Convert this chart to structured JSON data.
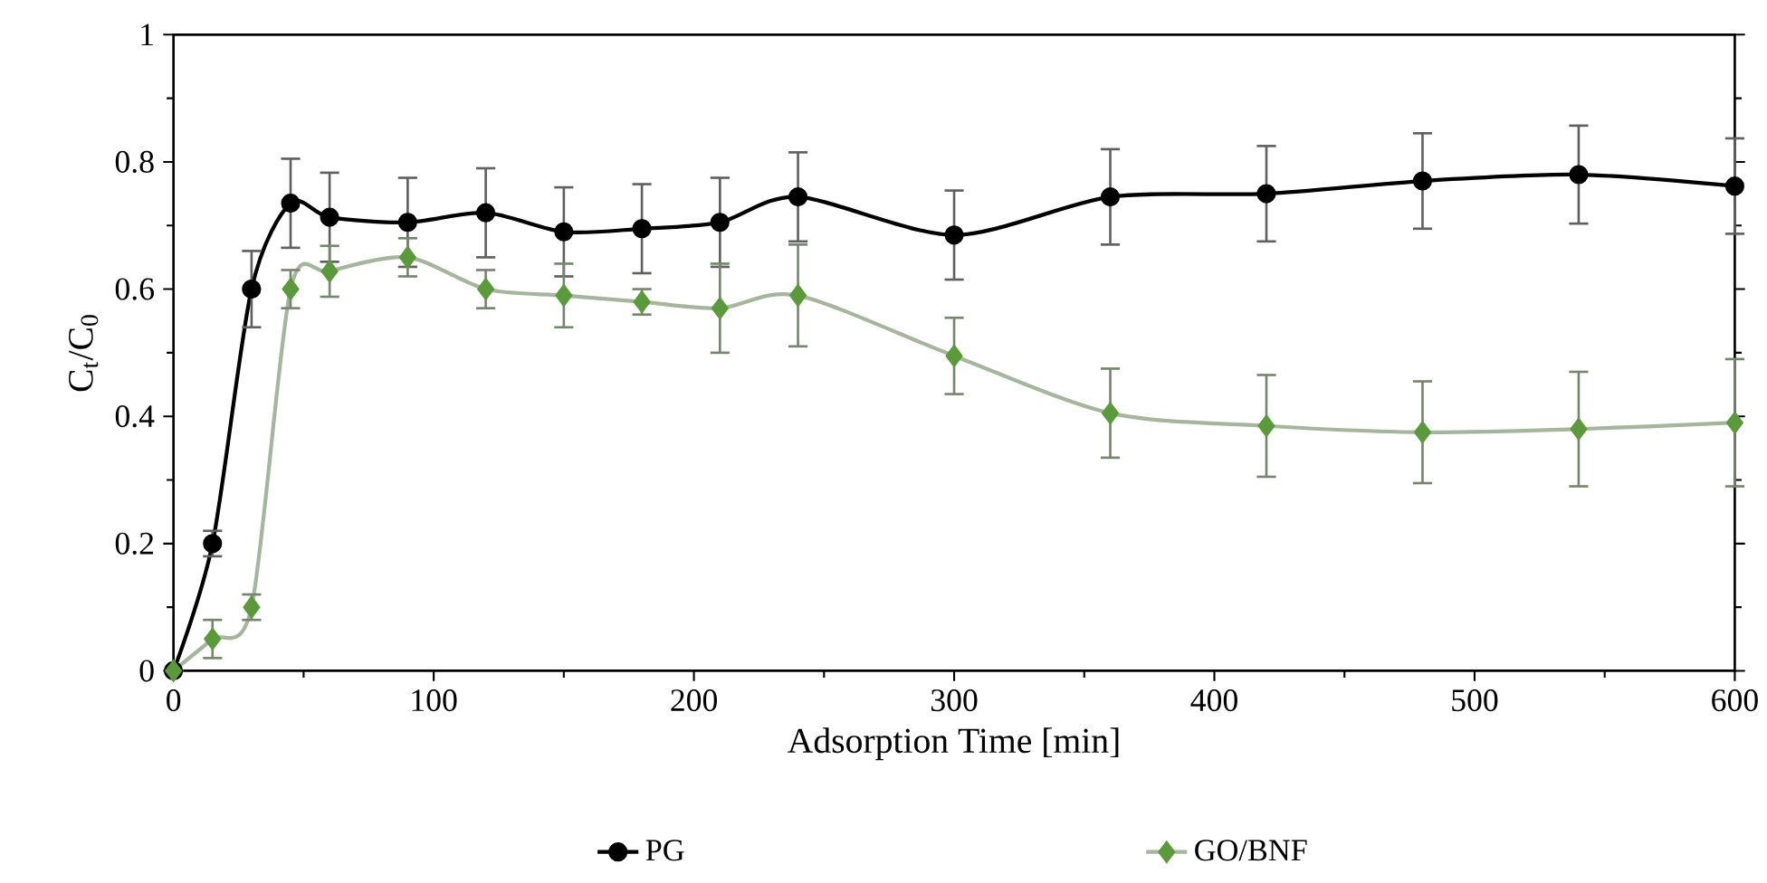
{
  "chart_data": {
    "type": "line",
    "xlabel": "Adsorption Time [min]",
    "ylabel": "C$_{t}$/C$_{0}$",
    "x": [
      0,
      15,
      30,
      45,
      60,
      90,
      120,
      150,
      180,
      210,
      240,
      300,
      360,
      420,
      480,
      540,
      600
    ],
    "series": [
      {
        "name": "PG",
        "color": "#000000",
        "marker": "circle",
        "values": [
          0,
          0.2,
          0.6,
          0.735,
          0.713,
          0.705,
          0.72,
          0.69,
          0.695,
          0.705,
          0.745,
          0.685,
          0.745,
          0.75,
          0.77,
          0.78,
          0.762
        ],
        "errors": [
          0,
          0.02,
          0.06,
          0.07,
          0.07,
          0.07,
          0.07,
          0.07,
          0.07,
          0.07,
          0.07,
          0.07,
          0.075,
          0.075,
          0.075,
          0.077,
          0.075
        ]
      },
      {
        "name": "GO/BNF",
        "color": "#5a9a3a",
        "marker": "diamond",
        "values": [
          0,
          0.05,
          0.1,
          0.6,
          0.628,
          0.65,
          0.6,
          0.59,
          0.58,
          0.57,
          0.59,
          0.495,
          0.405,
          0.385,
          0.375,
          0.38,
          0.39
        ],
        "errors": [
          0,
          0.03,
          0.02,
          0.03,
          0.04,
          0.03,
          0.03,
          0.05,
          0.02,
          0.07,
          0.08,
          0.06,
          0.07,
          0.08,
          0.08,
          0.09,
          0.1
        ]
      }
    ],
    "xlim": [
      0,
      600
    ],
    "xticks": [
      0,
      100,
      200,
      300,
      400,
      500,
      600
    ],
    "ylim": [
      0,
      1
    ],
    "yticks": [
      0,
      0.2,
      0.4,
      0.6,
      0.8,
      1
    ],
    "grid": false,
    "legend": "bottom"
  }
}
